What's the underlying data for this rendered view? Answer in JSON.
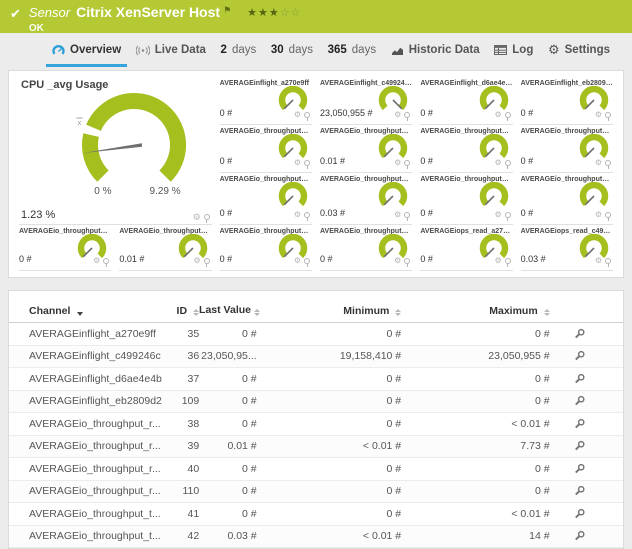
{
  "header": {
    "kind": "Sensor",
    "title": "Citrix XenServer Host",
    "status": "OK",
    "rating": {
      "filled": 3,
      "total": 5
    },
    "colors": {
      "bar": "#b5c935",
      "accent_blue": "#35a3dc",
      "gauge_green": "#a5bf1f"
    }
  },
  "tabs": [
    {
      "id": "overview",
      "icon": "gauge-icon",
      "label": "Overview",
      "active": true
    },
    {
      "id": "live-data",
      "icon": "broadcast-icon",
      "label": "Live Data",
      "active": false
    },
    {
      "id": "2-days",
      "num": "2",
      "label": "days",
      "active": false
    },
    {
      "id": "30-days",
      "num": "30",
      "label": "days",
      "active": false
    },
    {
      "id": "365-days",
      "num": "365",
      "label": "days",
      "active": false
    },
    {
      "id": "historic-data",
      "icon": "chart-icon",
      "label": "Historic Data",
      "active": false
    },
    {
      "id": "log",
      "icon": "log-icon",
      "label": "Log",
      "active": false
    },
    {
      "id": "settings",
      "icon": "gear-icon",
      "label": "Settings",
      "active": false
    }
  ],
  "primary_gauge": {
    "title": "CPU _avg Usage",
    "current": "1.23 %",
    "scale_min": "0 %",
    "scale_max": "9.29 %",
    "marker": "x"
  },
  "gauge_tiles": [
    {
      "label": "AVERAGEinflight_a270e9ff",
      "value": "0 #",
      "needle_deg": 225
    },
    {
      "label": "AVERAGEinflight_c499246c",
      "value": "23,050,955 #",
      "needle_deg": 135
    },
    {
      "label": "AVERAGEinflight_d6ae4e4b",
      "value": "0 #",
      "needle_deg": 225
    },
    {
      "label": "AVERAGEinflight_eb2809d2",
      "value": "0 #",
      "needle_deg": 225
    },
    {
      "label": "AVERAGEio_throughput_read...",
      "value": "0 #",
      "needle_deg": 225
    },
    {
      "label": "AVERAGEio_throughput_read...",
      "value": "0.01 #",
      "needle_deg": 225
    },
    {
      "label": "AVERAGEio_throughput_read...",
      "value": "0 #",
      "needle_deg": 225
    },
    {
      "label": "AVERAGEio_throughput_read...",
      "value": "0 #",
      "needle_deg": 225
    },
    {
      "label": "AVERAGEio_throughput_total...",
      "value": "0 #",
      "needle_deg": 225
    },
    {
      "label": "AVERAGEio_throughput_total...",
      "value": "0.03 #",
      "needle_deg": 225
    },
    {
      "label": "AVERAGEio_throughput_total...",
      "value": "0 #",
      "needle_deg": 225
    },
    {
      "label": "AVERAGEio_throughput_total...",
      "value": "0 #",
      "needle_deg": 225
    },
    {
      "label": "AVERAGEio_throughput_write...",
      "value": "0 #",
      "needle_deg": 225
    },
    {
      "label": "AVERAGEio_throughput_write...",
      "value": "0.01 #",
      "needle_deg": 225
    },
    {
      "label": "AVERAGEio_throughput_write...",
      "value": "0 #",
      "needle_deg": 225
    },
    {
      "label": "AVERAGEio_throughput_write...",
      "value": "0 #",
      "needle_deg": 225
    },
    {
      "label": "AVERAGEiops_read_a270e9ff",
      "value": "0 #",
      "needle_deg": 225
    },
    {
      "label": "AVERAGEiops_read_c499246c",
      "value": "0.03 #",
      "needle_deg": 225
    }
  ],
  "channel_table": {
    "columns": [
      {
        "label": "Channel",
        "sorted": true
      },
      {
        "label": "ID"
      },
      {
        "label": "Last Value"
      },
      {
        "label": "Minimum"
      },
      {
        "label": "Maximum"
      }
    ],
    "rows": [
      {
        "channel": "AVERAGEinflight_a270e9ff",
        "id": "35",
        "last": "0 #",
        "min": "0 #",
        "max": "0 #"
      },
      {
        "channel": "AVERAGEinflight_c499246c",
        "id": "36",
        "last": "23,050,95...",
        "min": "19,158,410 #",
        "max": "23,050,955 #"
      },
      {
        "channel": "AVERAGEinflight_d6ae4e4b",
        "id": "37",
        "last": "0 #",
        "min": "0 #",
        "max": "0 #"
      },
      {
        "channel": "AVERAGEinflight_eb2809d2",
        "id": "109",
        "last": "0 #",
        "min": "0 #",
        "max": "0 #"
      },
      {
        "channel": "AVERAGEio_throughput_r...",
        "id": "38",
        "last": "0 #",
        "min": "0 #",
        "max": "< 0.01 #"
      },
      {
        "channel": "AVERAGEio_throughput_r...",
        "id": "39",
        "last": "0.01 #",
        "min": "< 0.01 #",
        "max": "7.73 #"
      },
      {
        "channel": "AVERAGEio_throughput_r...",
        "id": "40",
        "last": "0 #",
        "min": "0 #",
        "max": "0 #"
      },
      {
        "channel": "AVERAGEio_throughput_r...",
        "id": "110",
        "last": "0 #",
        "min": "0 #",
        "max": "0 #"
      },
      {
        "channel": "AVERAGEio_throughput_t...",
        "id": "41",
        "last": "0 #",
        "min": "0 #",
        "max": "< 0.01 #"
      },
      {
        "channel": "AVERAGEio_throughput_t...",
        "id": "42",
        "last": "0.03 #",
        "min": "< 0.01 #",
        "max": "14 #"
      }
    ]
  }
}
